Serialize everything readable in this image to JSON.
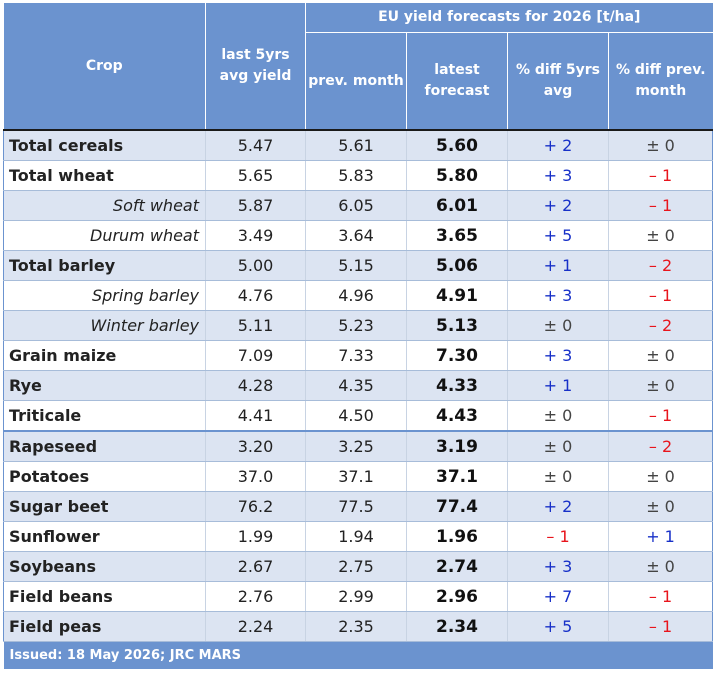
{
  "header": {
    "crop": "Crop",
    "last5": "last 5yrs avg yield",
    "group": "EU yield forecasts for 2026 [t/ha]",
    "prev_month": "prev. month",
    "latest": "latest forecast",
    "diff5": "% diff 5yrs avg",
    "diffprev": "% diff prev. month"
  },
  "rows": [
    {
      "crop": "Total cereals",
      "last5": "5.47",
      "prev": "5.61",
      "latest": "5.60",
      "d5": "+ 2",
      "dp": "± 0"
    },
    {
      "crop": "Total wheat",
      "last5": "5.65",
      "prev": "5.83",
      "latest": "5.80",
      "d5": "+ 3",
      "dp": "– 1"
    },
    {
      "crop": "Soft wheat",
      "last5": "5.87",
      "prev": "6.05",
      "latest": "6.01",
      "d5": "+ 2",
      "dp": "– 1"
    },
    {
      "crop": "Durum wheat",
      "last5": "3.49",
      "prev": "3.64",
      "latest": "3.65",
      "d5": "+ 5",
      "dp": "± 0"
    },
    {
      "crop": "Total barley",
      "last5": "5.00",
      "prev": "5.15",
      "latest": "5.06",
      "d5": "+ 1",
      "dp": "– 2"
    },
    {
      "crop": "Spring barley",
      "last5": "4.76",
      "prev": "4.96",
      "latest": "4.91",
      "d5": "+ 3",
      "dp": "– 1"
    },
    {
      "crop": "Winter barley",
      "last5": "5.11",
      "prev": "5.23",
      "latest": "5.13",
      "d5": "± 0",
      "dp": "– 2"
    },
    {
      "crop": "Grain maize",
      "last5": "7.09",
      "prev": "7.33",
      "latest": "7.30",
      "d5": "+ 3",
      "dp": "± 0"
    },
    {
      "crop": "Rye",
      "last5": "4.28",
      "prev": "4.35",
      "latest": "4.33",
      "d5": "+ 1",
      "dp": "± 0"
    },
    {
      "crop": "Triticale",
      "last5": "4.41",
      "prev": "4.50",
      "latest": "4.43",
      "d5": "± 0",
      "dp": "– 1"
    },
    {
      "crop": "Rapeseed",
      "last5": "3.20",
      "prev": "3.25",
      "latest": "3.19",
      "d5": "± 0",
      "dp": "– 2"
    },
    {
      "crop": "Potatoes",
      "last5": "37.0",
      "prev": "37.1",
      "latest": "37.1",
      "d5": "± 0",
      "dp": "± 0"
    },
    {
      "crop": "Sugar beet",
      "last5": "76.2",
      "prev": "77.5",
      "latest": "77.4",
      "d5": "+ 2",
      "dp": "± 0"
    },
    {
      "crop": "Sunflower",
      "last5": "1.99",
      "prev": "1.94",
      "latest": "1.96",
      "d5": "– 1",
      "dp": "+ 1"
    },
    {
      "crop": "Soybeans",
      "last5": "2.67",
      "prev": "2.75",
      "latest": "2.74",
      "d5": "+ 3",
      "dp": "± 0"
    },
    {
      "crop": "Field beans",
      "last5": "2.76",
      "prev": "2.99",
      "latest": "2.96",
      "d5": "+ 7",
      "dp": "– 1"
    },
    {
      "crop": "Field peas",
      "last5": "2.24",
      "prev": "2.35",
      "latest": "2.34",
      "d5": "+ 5",
      "dp": "– 1"
    }
  ],
  "footer": "Issued: 18 May 2026; JRC MARS",
  "colors": {
    "header_bg": "#6b93cf",
    "shade": "#dce4f2",
    "positive": "#1730c8",
    "negative": "#e8141c"
  }
}
